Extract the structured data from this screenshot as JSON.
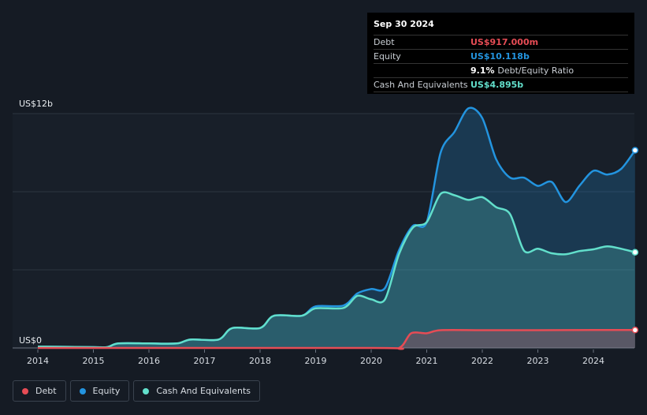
{
  "tooltip": {
    "date": "Sep 30 2024",
    "debt_label": "Debt",
    "debt_value": "US$917.000m",
    "equity_label": "Equity",
    "equity_value": "US$10.118b",
    "ratio_value": "9.1%",
    "ratio_label": "Debt/Equity Ratio",
    "cash_label": "Cash And Equivalents",
    "cash_value": "US$4.895b"
  },
  "legend": [
    {
      "label": "Debt",
      "color": "#e64c55"
    },
    {
      "label": "Equity",
      "color": "#2394df"
    },
    {
      "label": "Cash And Equivalents",
      "color": "#62dfcb"
    }
  ],
  "chart_data": {
    "type": "area",
    "ylim": [
      0,
      12
    ],
    "y_unit": "US$ billions",
    "y_ticks": [
      {
        "value": 12,
        "label": "US$12b"
      },
      {
        "value": 0,
        "label": "US$0"
      }
    ],
    "x_ticks": [
      "2014",
      "2015",
      "2016",
      "2017",
      "2018",
      "2019",
      "2020",
      "2021",
      "2022",
      "2023",
      "2024"
    ],
    "grid": true,
    "series": [
      {
        "name": "Equity",
        "color": "#2394df",
        "points": [
          [
            2014.0,
            0.07
          ],
          [
            2015.0,
            0.04
          ],
          [
            2015.25,
            0.04
          ],
          [
            2015.45,
            0.23
          ],
          [
            2016.0,
            0.23
          ],
          [
            2016.5,
            0.23
          ],
          [
            2016.75,
            0.43
          ],
          [
            2017.25,
            0.43
          ],
          [
            2017.5,
            1.02
          ],
          [
            2018.0,
            1.02
          ],
          [
            2018.25,
            1.65
          ],
          [
            2018.75,
            1.65
          ],
          [
            2019.0,
            2.13
          ],
          [
            2019.5,
            2.17
          ],
          [
            2019.75,
            2.79
          ],
          [
            2020.0,
            3.02
          ],
          [
            2020.25,
            3.07
          ],
          [
            2020.5,
            5.0
          ],
          [
            2020.75,
            6.25
          ],
          [
            2021.0,
            6.44
          ],
          [
            2021.25,
            10.0
          ],
          [
            2021.5,
            11.07
          ],
          [
            2021.75,
            12.27
          ],
          [
            2022.0,
            11.77
          ],
          [
            2022.25,
            9.66
          ],
          [
            2022.5,
            8.72
          ],
          [
            2022.75,
            8.72
          ],
          [
            2023.0,
            8.3
          ],
          [
            2023.25,
            8.5
          ],
          [
            2023.5,
            7.47
          ],
          [
            2023.75,
            8.31
          ],
          [
            2024.0,
            9.07
          ],
          [
            2024.25,
            8.88
          ],
          [
            2024.5,
            9.17
          ],
          [
            2024.75,
            10.12
          ]
        ]
      },
      {
        "name": "Cash And Equivalents",
        "color": "#62dfcb",
        "points": [
          [
            2014.0,
            0.07
          ],
          [
            2015.0,
            0.04
          ],
          [
            2015.25,
            0.04
          ],
          [
            2015.45,
            0.23
          ],
          [
            2016.0,
            0.23
          ],
          [
            2016.5,
            0.23
          ],
          [
            2016.75,
            0.43
          ],
          [
            2017.25,
            0.43
          ],
          [
            2017.5,
            1.02
          ],
          [
            2018.0,
            1.02
          ],
          [
            2018.25,
            1.65
          ],
          [
            2018.75,
            1.65
          ],
          [
            2019.0,
            2.03
          ],
          [
            2019.5,
            2.05
          ],
          [
            2019.75,
            2.67
          ],
          [
            2020.0,
            2.49
          ],
          [
            2020.25,
            2.49
          ],
          [
            2020.5,
            4.8
          ],
          [
            2020.75,
            6.16
          ],
          [
            2021.0,
            6.44
          ],
          [
            2021.25,
            7.89
          ],
          [
            2021.5,
            7.82
          ],
          [
            2021.75,
            7.58
          ],
          [
            2022.0,
            7.72
          ],
          [
            2022.25,
            7.21
          ],
          [
            2022.5,
            6.85
          ],
          [
            2022.75,
            4.98
          ],
          [
            2023.0,
            5.08
          ],
          [
            2023.25,
            4.85
          ],
          [
            2023.5,
            4.8
          ],
          [
            2023.75,
            4.96
          ],
          [
            2024.0,
            5.05
          ],
          [
            2024.25,
            5.2
          ],
          [
            2024.5,
            5.08
          ],
          [
            2024.75,
            4.9
          ]
        ]
      },
      {
        "name": "Debt",
        "color": "#e64c55",
        "points": [
          [
            2014.0,
            0.0
          ],
          [
            2020.0,
            0.0
          ],
          [
            2020.5,
            0.0
          ],
          [
            2020.72,
            0.75
          ],
          [
            2021.0,
            0.75
          ],
          [
            2021.25,
            0.91
          ],
          [
            2022.0,
            0.91
          ],
          [
            2023.0,
            0.91
          ],
          [
            2024.0,
            0.92
          ],
          [
            2024.75,
            0.917
          ]
        ]
      }
    ]
  }
}
